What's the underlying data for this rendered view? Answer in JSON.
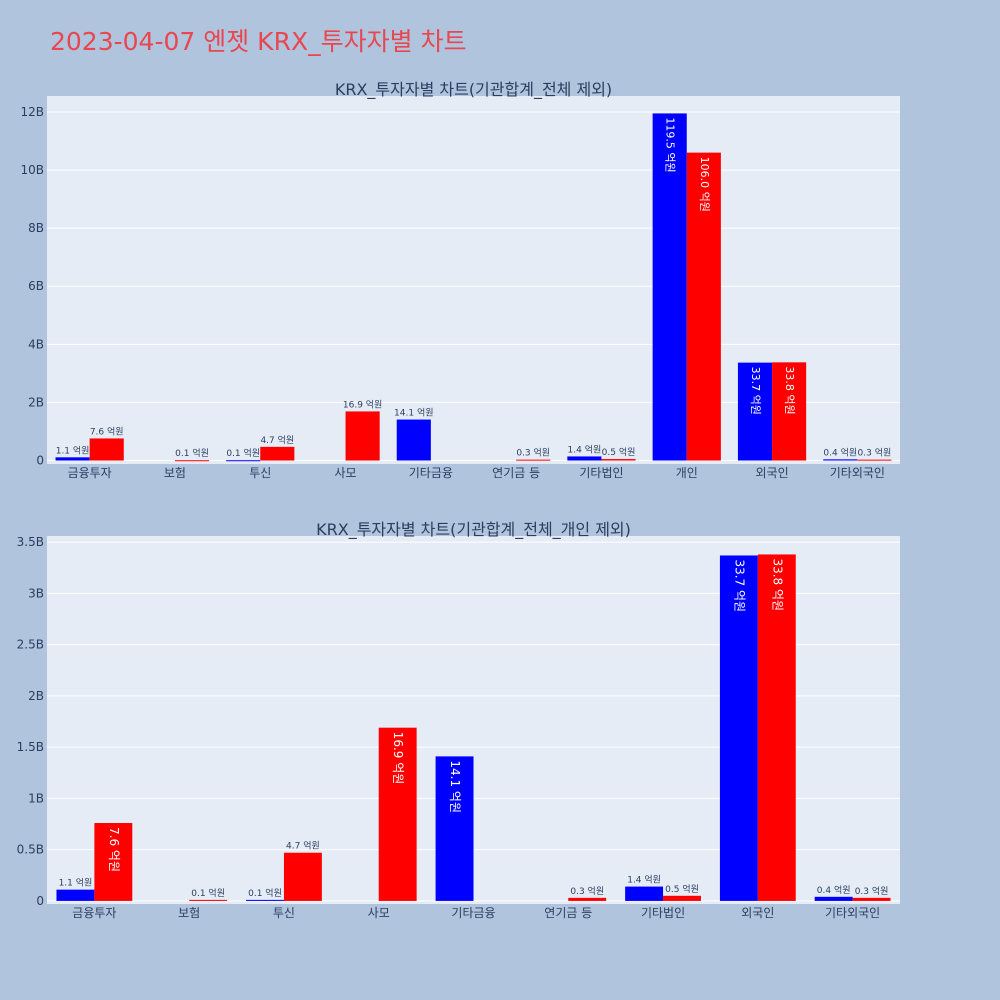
{
  "title": "2023-04-07 엔젯 KRX_투자자별 차트",
  "colors": {
    "buy": "#0000ff",
    "sell": "#ff0000",
    "title": "#e8474f",
    "plot_bg": "#e5ecf6",
    "page_bg": "#b0c4de"
  },
  "chart_data": [
    {
      "type": "bar",
      "title": "KRX_투자자별 차트(기관합계_전체 제외)",
      "categories": [
        "금융투자",
        "보험",
        "투신",
        "사모",
        "기타금융",
        "연기금 등",
        "기타법인",
        "개인",
        "외국인",
        "기타외국인"
      ],
      "series": [
        {
          "values": [
            110000000,
            0,
            10000000,
            0,
            1410000000,
            0,
            140000000,
            11950000000,
            3370000000,
            40000000
          ],
          "labels": [
            "1.1 억원",
            "",
            "0.1 억원",
            "",
            "14.1 억원",
            "",
            "1.4 억원",
            "119.5 억원",
            "33.7 억원",
            "0.4 억원"
          ]
        },
        {
          "values": [
            760000000,
            10000000,
            470000000,
            1690000000,
            0,
            30000000,
            50000000,
            10600000000,
            3380000000,
            30000000
          ],
          "labels": [
            "7.6 억원",
            "0.1 억원",
            "4.7 억원",
            "16.9 억원",
            "",
            "0.3 억원",
            "0.5 억원",
            "106.0 억원",
            "33.8 억원",
            "0.3 억원"
          ]
        }
      ],
      "yticks": [
        0,
        2000000000,
        4000000000,
        6000000000,
        8000000000,
        10000000000,
        12000000000
      ],
      "ytick_labels": [
        "0",
        "2B",
        "4B",
        "6B",
        "8B",
        "10B",
        "12B"
      ],
      "ylim": [
        -120000000,
        12550000000
      ],
      "grid": true
    },
    {
      "type": "bar",
      "title": "KRX_투자자별 차트(기관합계_전체_개인 제외)",
      "categories": [
        "금융투자",
        "보험",
        "투신",
        "사모",
        "기타금융",
        "연기금 등",
        "기타법인",
        "외국인",
        "기타외국인"
      ],
      "series": [
        {
          "values": [
            110000000,
            0,
            10000000,
            0,
            1410000000,
            0,
            140000000,
            3370000000,
            40000000
          ],
          "labels": [
            "1.1 억원",
            "",
            "0.1 억원",
            "",
            "14.1 억원",
            "",
            "1.4 억원",
            "33.7 억원",
            "0.4 억원"
          ]
        },
        {
          "values": [
            760000000,
            10000000,
            470000000,
            1690000000,
            0,
            30000000,
            50000000,
            3380000000,
            30000000
          ],
          "labels": [
            "7.6 억원",
            "0.1 억원",
            "4.7 억원",
            "16.9 억원",
            "",
            "0.3 억원",
            "0.5 억원",
            "33.8 억원",
            "0.3 억원"
          ]
        }
      ],
      "yticks": [
        0,
        500000000,
        1000000000,
        1500000000,
        2000000000,
        2500000000,
        3000000000,
        3500000000
      ],
      "ytick_labels": [
        "0",
        "0.5B",
        "1B",
        "1.5B",
        "2B",
        "2.5B",
        "3B",
        "3.5B"
      ],
      "ylim": [
        -30000000,
        3560000000
      ],
      "grid": true
    }
  ]
}
